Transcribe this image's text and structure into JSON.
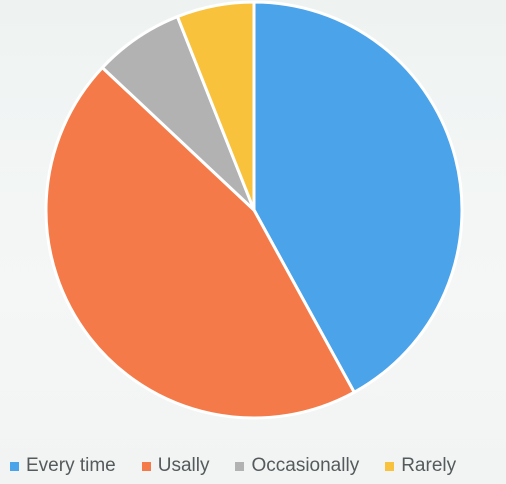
{
  "chart_data": {
    "type": "pie",
    "title": "",
    "labels": [
      "Every time",
      "Usally",
      "Occasionally",
      "Rarely"
    ],
    "values": [
      42,
      45,
      7,
      6
    ],
    "unit": "percent (estimated share)",
    "colors": [
      "#4BA3EA",
      "#F47B49",
      "#B2B2B2",
      "#F9C23C"
    ],
    "start_angle": "12 o'clock, clockwise",
    "legend_position": "bottom"
  }
}
